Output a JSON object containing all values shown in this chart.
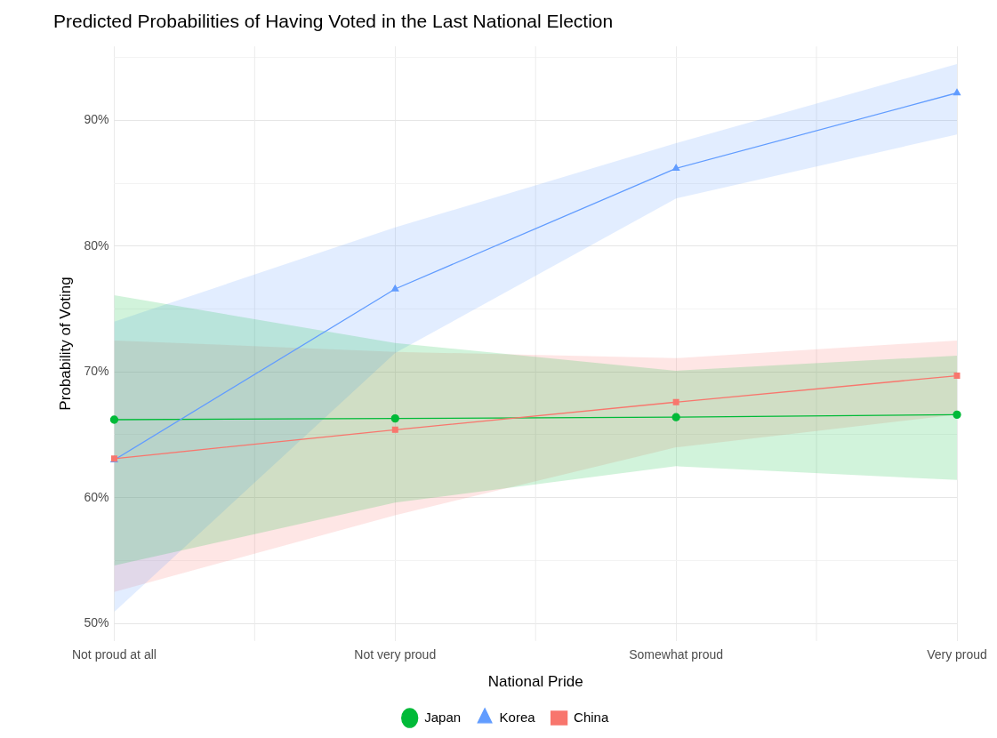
{
  "chart_data": {
    "type": "line",
    "title": "Predicted Probabilities of Having Voted in the Last National Election",
    "xlabel": "National Pride",
    "ylabel": "Probability of Voting",
    "categories": [
      "Not proud at all",
      "Not very proud",
      "Somewhat proud",
      "Very proud"
    ],
    "series": [
      {
        "name": "Japan",
        "color": "#00ba38",
        "marker": "circle",
        "values": [
          66.2,
          66.3,
          66.4,
          66.6
        ],
        "lower": [
          54.6,
          59.6,
          62.5,
          61.4
        ],
        "upper": [
          76.1,
          72.3,
          70.1,
          71.3
        ]
      },
      {
        "name": "Korea",
        "color": "#619cff",
        "marker": "triangle",
        "values": [
          63.0,
          76.6,
          86.2,
          92.2
        ],
        "lower": [
          50.9,
          71.5,
          83.8,
          88.9
        ],
        "upper": [
          74.0,
          81.5,
          88.2,
          94.5
        ]
      },
      {
        "name": "China",
        "color": "#f8766d",
        "marker": "square",
        "values": [
          63.1,
          65.4,
          67.6,
          69.7
        ],
        "lower": [
          52.5,
          58.6,
          64.0,
          66.6
        ],
        "upper": [
          72.5,
          71.6,
          71.1,
          72.5
        ]
      }
    ],
    "ylim": [
      48.6,
      95.9
    ],
    "yticks": [
      {
        "value": 50,
        "label": "50%"
      },
      {
        "value": 55,
        "label": null
      },
      {
        "value": 60,
        "label": "60%"
      },
      {
        "value": 65,
        "label": null
      },
      {
        "value": 70,
        "label": "70%"
      },
      {
        "value": 75,
        "label": null
      },
      {
        "value": 80,
        "label": "80%"
      },
      {
        "value": 85,
        "label": null
      },
      {
        "value": 90,
        "label": "90%"
      },
      {
        "value": 95,
        "label": null
      }
    ],
    "grid": true,
    "legend": "bottom",
    "line_style": "solid"
  }
}
